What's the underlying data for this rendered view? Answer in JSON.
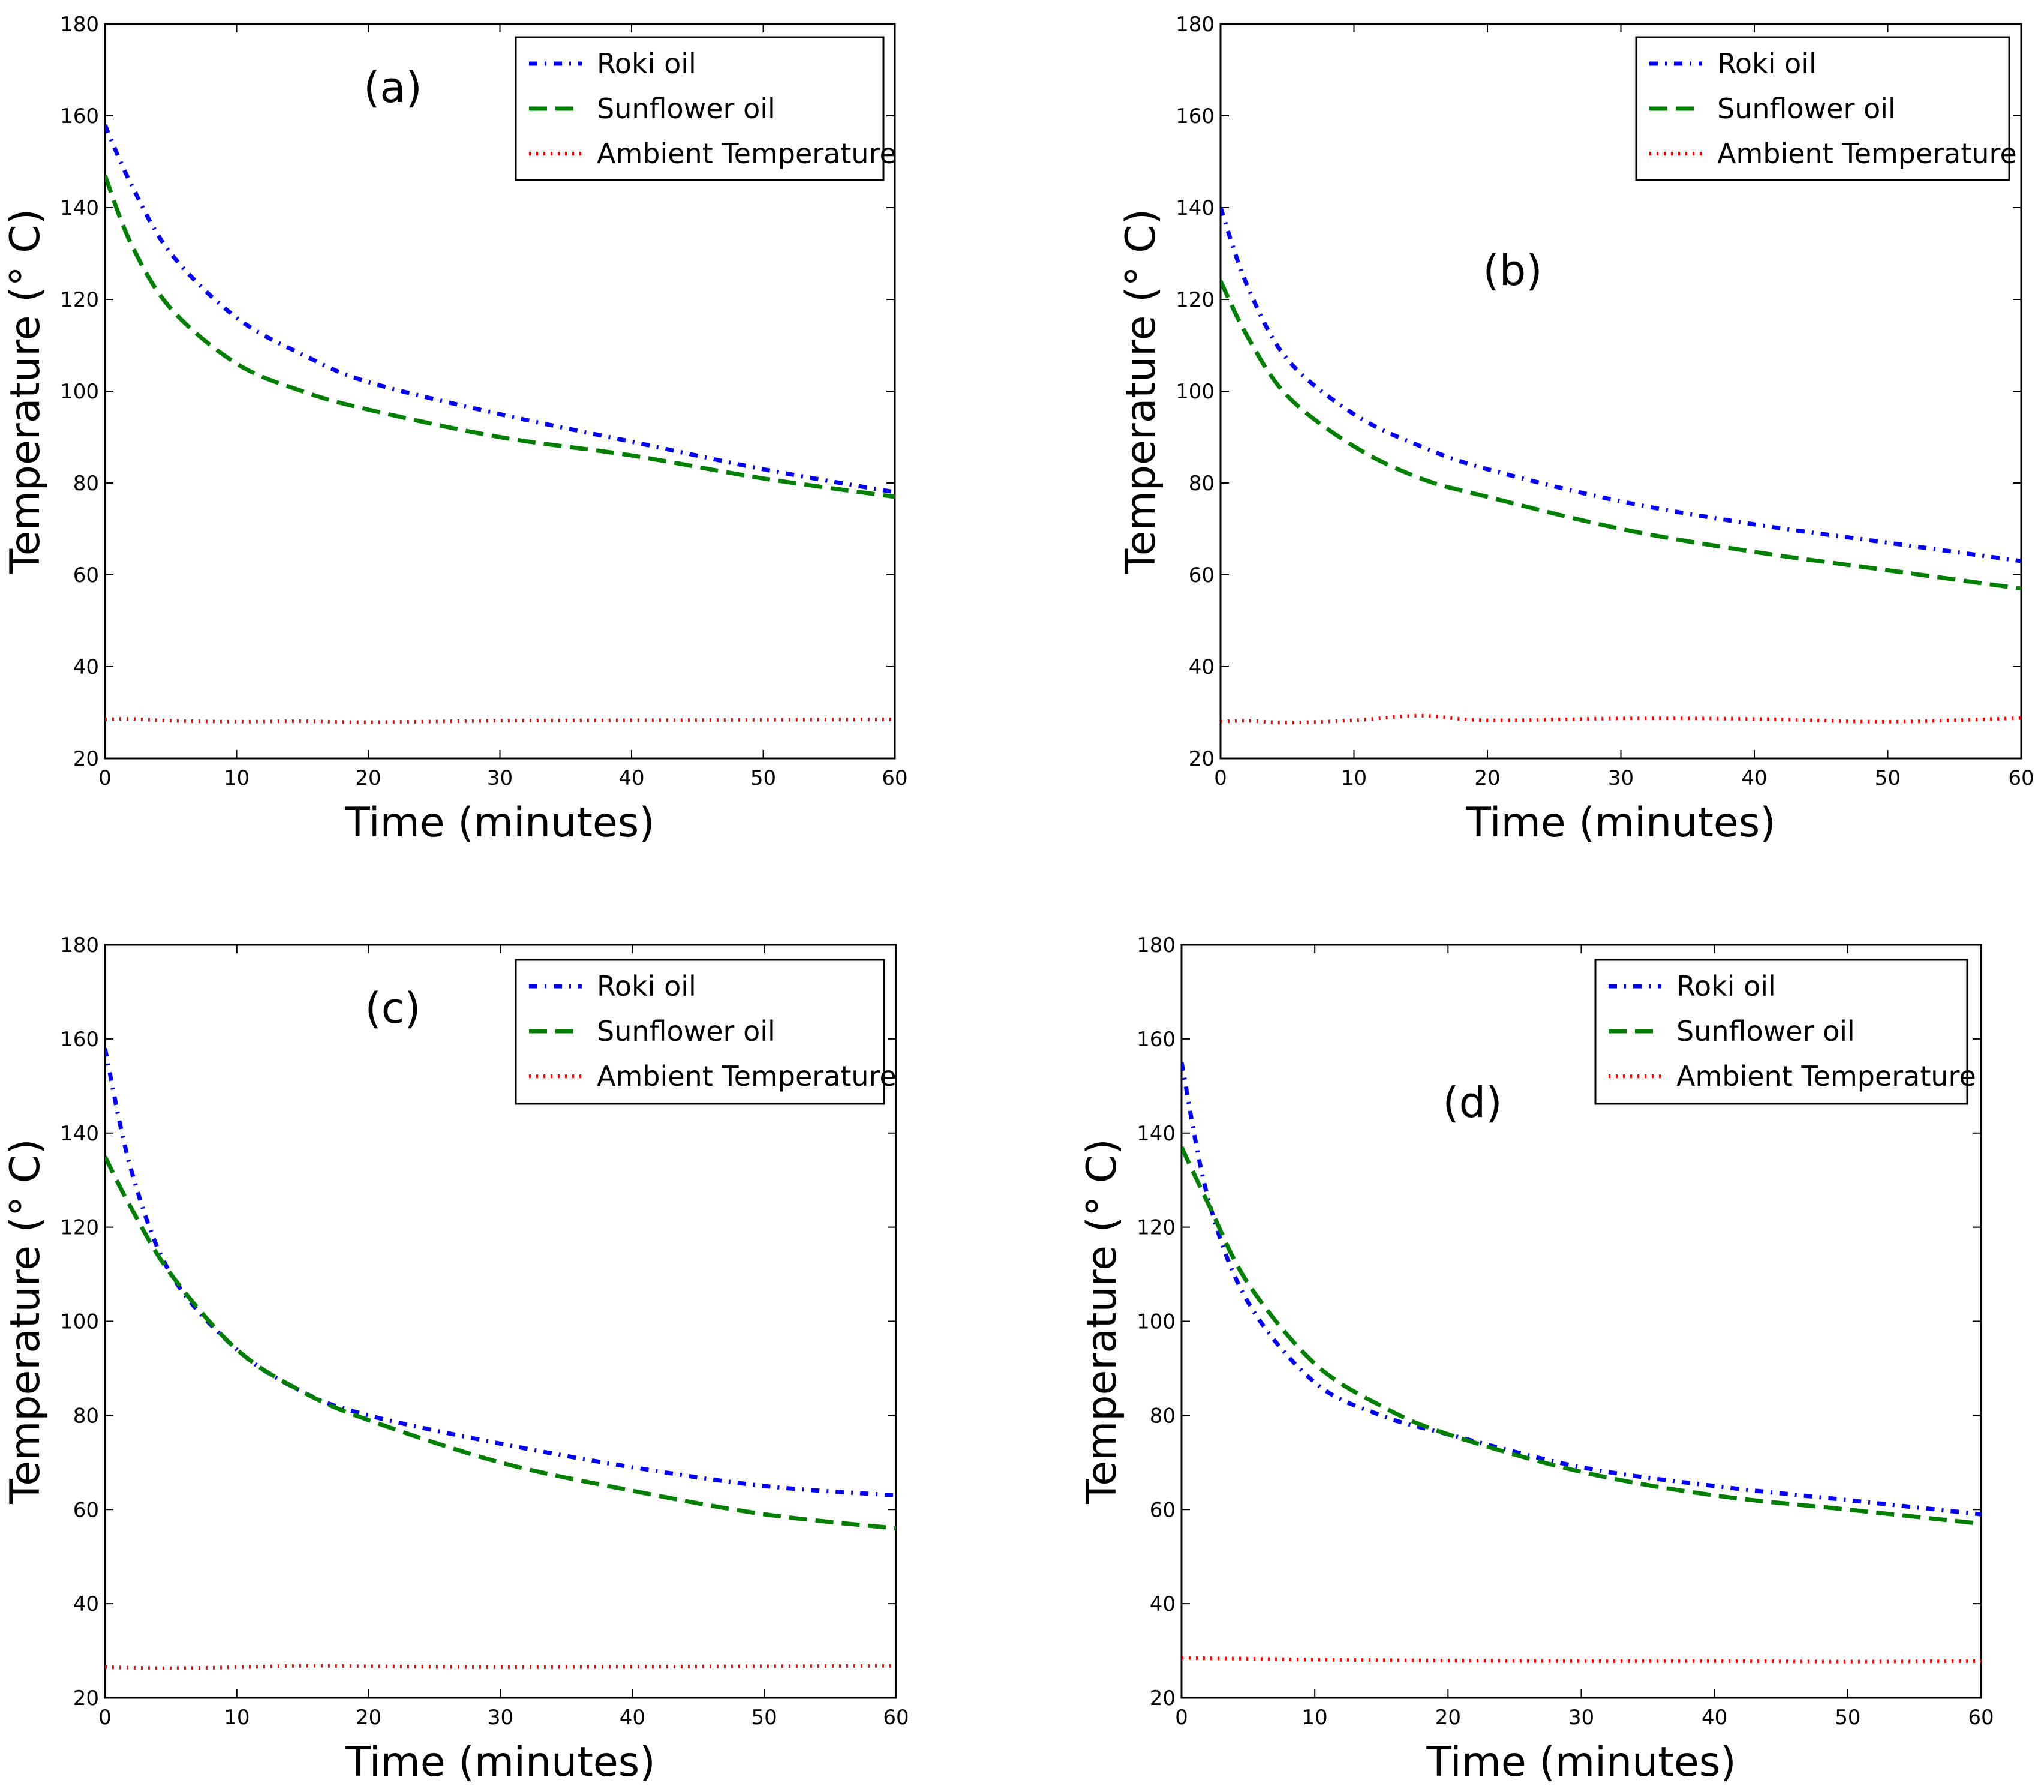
{
  "chart_data": [
    {
      "type": "line",
      "panel_label": "(a)",
      "xlabel": "Time (minutes)",
      "ylabel": "Temperature (° C)",
      "xlim": [
        0,
        60
      ],
      "ylim": [
        20,
        180
      ],
      "xticks": [
        "0",
        "10",
        "20",
        "30",
        "40",
        "50",
        "60"
      ],
      "yticks": [
        "20",
        "40",
        "60",
        "80",
        "100",
        "120",
        "140",
        "160",
        "180"
      ],
      "legend_position": "top-right",
      "x": [
        0,
        2,
        5,
        10,
        15,
        20,
        30,
        40,
        50,
        60
      ],
      "series": [
        {
          "name": "Roki oil",
          "style": "dash-dot",
          "color": "#0000ff",
          "values": [
            158,
            145,
            130,
            116,
            108,
            102,
            95,
            89,
            83,
            78
          ]
        },
        {
          "name": "Sunflower oil",
          "style": "dashed",
          "color": "#008000",
          "values": [
            147,
            132,
            118,
            106,
            100,
            96,
            90,
            86,
            81,
            77
          ]
        },
        {
          "name": "Ambient Temperature",
          "style": "dotted",
          "color": "#ff0000",
          "values": [
            28.5,
            28.6,
            28.2,
            28.0,
            28.1,
            27.9,
            28.2,
            28.3,
            28.4,
            28.5
          ]
        }
      ]
    },
    {
      "type": "line",
      "panel_label": "(b)",
      "xlabel": "Time (minutes)",
      "ylabel": "Temperature (° C)",
      "xlim": [
        0,
        60
      ],
      "ylim": [
        20,
        180
      ],
      "xticks": [
        "0",
        "10",
        "20",
        "30",
        "40",
        "50",
        "60"
      ],
      "yticks": [
        "20",
        "40",
        "60",
        "80",
        "100",
        "120",
        "140",
        "160",
        "180"
      ],
      "legend_position": "top-right",
      "x": [
        0,
        2,
        5,
        10,
        15,
        20,
        30,
        40,
        50,
        60
      ],
      "series": [
        {
          "name": "Roki oil",
          "style": "dash-dot",
          "color": "#0000ff",
          "values": [
            140,
            123,
            107,
            95,
            88,
            83,
            76,
            71,
            67,
            63
          ]
        },
        {
          "name": "Sunflower oil",
          "style": "dashed",
          "color": "#008000",
          "values": [
            124,
            112,
            99,
            88,
            81,
            77,
            70,
            65,
            61,
            57
          ]
        },
        {
          "name": "Ambient Temperature",
          "style": "dotted",
          "color": "#ff0000",
          "values": [
            28.0,
            28.2,
            27.8,
            28.3,
            29.3,
            28.3,
            28.7,
            28.6,
            28.0,
            28.8
          ]
        }
      ]
    },
    {
      "type": "line",
      "panel_label": "(c)",
      "xlabel": "Time (minutes)",
      "ylabel": "Temperature (° C)",
      "xlim": [
        0,
        60
      ],
      "ylim": [
        20,
        180
      ],
      "xticks": [
        "0",
        "10",
        "20",
        "30",
        "40",
        "50",
        "60"
      ],
      "yticks": [
        "20",
        "40",
        "60",
        "80",
        "100",
        "120",
        "140",
        "160",
        "180"
      ],
      "legend_position": "top-right",
      "x": [
        0,
        2,
        5,
        10,
        15,
        20,
        30,
        40,
        50,
        60
      ],
      "series": [
        {
          "name": "Roki oil",
          "style": "dash-dot",
          "color": "#0000ff",
          "values": [
            158,
            132,
            110,
            94,
            85,
            80,
            74,
            69,
            65,
            63
          ]
        },
        {
          "name": "Sunflower oil",
          "style": "dashed",
          "color": "#008000",
          "values": [
            135,
            124,
            110,
            94,
            85,
            79,
            70,
            64,
            59,
            56
          ]
        },
        {
          "name": "Ambient Temperature",
          "style": "dotted",
          "color": "#ff0000",
          "values": [
            26.5,
            26.4,
            26.3,
            26.5,
            26.8,
            26.7,
            26.5,
            26.6,
            26.7,
            26.8
          ]
        }
      ]
    },
    {
      "type": "line",
      "panel_label": "(d)",
      "xlabel": "Time (minutes)",
      "ylabel": "Temperature (° C)",
      "xlim": [
        0,
        60
      ],
      "ylim": [
        20,
        180
      ],
      "xticks": [
        "0",
        "10",
        "20",
        "30",
        "40",
        "50",
        "60"
      ],
      "yticks": [
        "20",
        "40",
        "60",
        "80",
        "100",
        "120",
        "140",
        "160",
        "180"
      ],
      "legend_position": "top-right",
      "x": [
        0,
        2,
        5,
        10,
        15,
        20,
        30,
        40,
        50,
        60
      ],
      "series": [
        {
          "name": "Roki oil",
          "style": "dash-dot",
          "color": "#0000ff",
          "values": [
            155,
            126,
            104,
            87,
            80,
            76,
            69,
            65,
            62,
            59
          ]
        },
        {
          "name": "Sunflower oil",
          "style": "dashed",
          "color": "#008000",
          "values": [
            137,
            125,
            108,
            91,
            82,
            76,
            68,
            63,
            60,
            57
          ]
        },
        {
          "name": "Ambient Temperature",
          "style": "dotted",
          "color": "#ff0000",
          "values": [
            28.5,
            28.4,
            28.3,
            28.1,
            28.0,
            27.9,
            27.8,
            27.8,
            27.7,
            27.8
          ]
        }
      ]
    }
  ]
}
